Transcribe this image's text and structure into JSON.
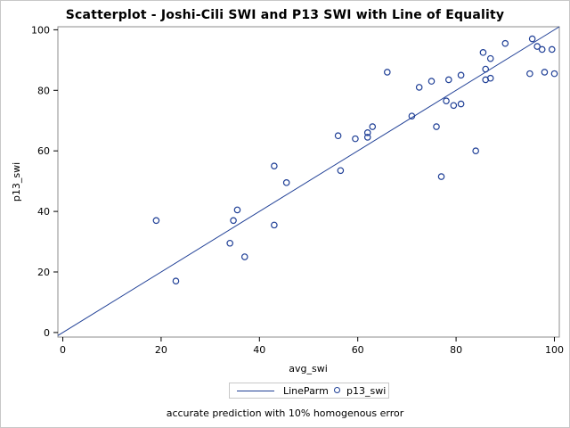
{
  "chart_data": {
    "type": "scatter",
    "title": "Scatterplot - Joshi-Cili SWI and P13 SWI with Line of Equality",
    "xlabel": "avg_swi",
    "ylabel": "p13_swi",
    "xlim": [
      -1,
      101
    ],
    "ylim": [
      -1.5,
      101
    ],
    "xticks": [
      0,
      20,
      40,
      60,
      80,
      100
    ],
    "yticks": [
      0,
      20,
      40,
      60,
      80,
      100
    ],
    "grid": false,
    "legend_position": "bottom",
    "legend": [
      "LineParm",
      "p13_swi"
    ],
    "footnote": "accurate prediction with 10% homogenous error",
    "line": {
      "name": "LineParm",
      "intercept": 0,
      "slope": 1,
      "color": "#1f3f96"
    },
    "series": [
      {
        "name": "p13_swi",
        "color": "#1f3f96",
        "points": [
          [
            19.0,
            37.0
          ],
          [
            23.0,
            17.0
          ],
          [
            34.0,
            29.5
          ],
          [
            34.7,
            37.0
          ],
          [
            35.5,
            40.5
          ],
          [
            37.0,
            25.0
          ],
          [
            43.0,
            35.5
          ],
          [
            43.0,
            55.0
          ],
          [
            45.5,
            49.5
          ],
          [
            56.0,
            65.0
          ],
          [
            56.5,
            53.5
          ],
          [
            59.5,
            64.0
          ],
          [
            62.0,
            66.0
          ],
          [
            62.0,
            64.5
          ],
          [
            63.0,
            68.0
          ],
          [
            66.0,
            86.0
          ],
          [
            71.0,
            71.5
          ],
          [
            72.5,
            81.0
          ],
          [
            75.0,
            83.0
          ],
          [
            76.0,
            68.0
          ],
          [
            77.0,
            51.5
          ],
          [
            78.0,
            76.5
          ],
          [
            78.5,
            83.5
          ],
          [
            79.5,
            75.0
          ],
          [
            81.0,
            85.0
          ],
          [
            81.0,
            75.5
          ],
          [
            84.0,
            60.0
          ],
          [
            85.5,
            92.5
          ],
          [
            86.0,
            83.5
          ],
          [
            86.0,
            87.0
          ],
          [
            87.0,
            90.5
          ],
          [
            87.0,
            84.0
          ],
          [
            90.0,
            95.5
          ],
          [
            95.0,
            85.5
          ],
          [
            95.5,
            97.0
          ],
          [
            96.5,
            94.5
          ],
          [
            97.5,
            93.5
          ],
          [
            98.0,
            86.0
          ],
          [
            99.5,
            93.5
          ],
          [
            100.0,
            85.5
          ]
        ]
      }
    ]
  }
}
